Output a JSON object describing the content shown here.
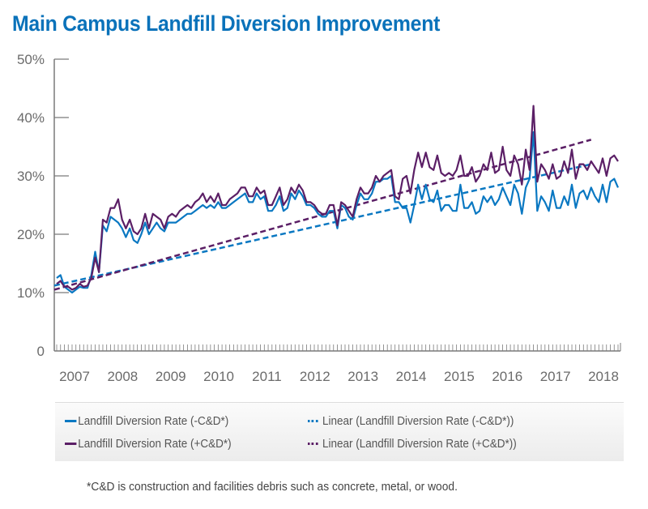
{
  "title": "Main Campus Landfill Diversion Improvement",
  "colors": {
    "blue": "#0a78c2",
    "purple": "#5b1f66",
    "axis": "#7a7a7a",
    "title": "#0a72ba"
  },
  "chart_data": {
    "type": "line",
    "title": "Main Campus Landfill Diversion Improvement",
    "xlabel": "",
    "ylabel": "",
    "ylim": [
      0,
      50
    ],
    "yticks": [
      0,
      10,
      20,
      30,
      40,
      50
    ],
    "ytick_labels": [
      "0",
      "10%",
      "20%",
      "30%",
      "40%",
      "50%"
    ],
    "x_unit": "month index",
    "year_labels": [
      "2007",
      "2008",
      "2009",
      "2010",
      "2011",
      "2012",
      "2013",
      "2014",
      "2015",
      "2016",
      "2017",
      "2018"
    ],
    "grid": false,
    "legend_position": "bottom",
    "series": [
      {
        "name": "Landfill Diversion Rate (-C&D*)",
        "style": "solid",
        "color": "#0a78c2",
        "values": [
          12.5,
          13,
          11,
          10.5,
          10,
          10.5,
          11,
          10.8,
          10.8,
          13,
          17,
          13.5,
          21.5,
          20.5,
          23,
          22.5,
          22,
          21,
          19.5,
          21,
          19,
          18.5,
          20,
          22,
          20,
          21,
          22,
          21,
          20.5,
          22,
          22,
          22,
          22.5,
          23,
          23.5,
          23.5,
          24,
          24.5,
          25,
          24.5,
          25,
          24.5,
          25.5,
          24.5,
          24.5,
          25,
          25.5,
          26,
          26.5,
          27,
          25.5,
          25.5,
          27,
          26,
          26.5,
          24,
          24,
          25,
          26.5,
          24,
          24.5,
          27,
          26,
          27.5,
          26.5,
          25,
          25,
          24.5,
          23.5,
          23,
          23,
          24,
          24,
          21,
          25,
          24.5,
          23,
          22.5,
          25,
          27,
          26,
          26,
          27,
          29,
          29,
          29.5,
          29.5,
          30,
          25.5,
          25.5,
          24.5,
          24.5,
          22,
          25,
          28.5,
          26,
          28.5,
          26,
          25.5,
          27.5,
          24,
          25,
          25,
          24,
          24,
          28.5,
          24.5,
          24.5,
          25.5,
          23.5,
          24,
          26.5,
          25.5,
          26.5,
          25,
          26,
          28,
          26.5,
          25,
          28.5,
          27,
          23.5,
          28,
          29.5,
          37.5,
          24,
          26.5,
          25.5,
          24,
          27.5,
          24.5,
          24.5,
          26.5,
          25,
          28.5,
          24.5,
          27,
          27.5,
          26,
          28,
          26.5,
          25.5,
          28.5,
          25.5,
          29,
          29.5,
          28
        ]
      },
      {
        "name": "Landfill Diversion Rate (+C&D*)",
        "style": "solid",
        "color": "#5b1f66",
        "values": [
          11.5,
          12,
          11,
          11,
          10.5,
          10.8,
          11.5,
          11,
          11.2,
          12.5,
          16,
          13.5,
          22.5,
          22,
          24.5,
          24.5,
          26,
          22.5,
          21,
          22.5,
          20.5,
          20,
          21,
          23.5,
          21,
          23.5,
          23,
          22.5,
          21,
          23,
          23.5,
          23,
          24,
          24.5,
          25,
          24.5,
          25.5,
          26,
          27,
          25.5,
          26.5,
          25.5,
          27,
          25,
          25,
          26,
          26.5,
          27,
          28,
          28,
          26.5,
          26.5,
          28,
          27,
          27.5,
          25,
          25,
          26.5,
          28,
          25,
          26,
          28,
          27,
          28.5,
          27.5,
          25.5,
          25.5,
          25,
          24,
          23.5,
          23.5,
          25,
          25,
          21.5,
          25.5,
          25,
          24,
          23,
          26,
          28,
          27,
          27,
          28,
          30,
          29,
          30,
          30.5,
          31,
          26.5,
          26,
          29.5,
          30,
          27,
          31,
          34,
          31.5,
          34,
          31.5,
          31,
          33.5,
          30.5,
          30,
          30.5,
          30,
          31,
          33.5,
          30,
          30,
          31.5,
          29,
          30,
          32,
          31,
          34,
          30.5,
          31,
          35,
          31,
          30,
          33.5,
          32,
          28.5,
          34.5,
          31,
          42,
          29,
          32,
          31,
          29.5,
          32,
          29.5,
          30,
          32.5,
          30.5,
          34.5,
          29.5,
          32,
          32,
          31,
          32.5,
          31.5,
          30.5,
          33,
          30,
          33,
          33.5,
          32.5
        ]
      },
      {
        "name": "Linear (Landfill Diversion Rate (-C&D*))",
        "style": "dashed",
        "color": "#0a78c2",
        "endpoints": [
          [
            0,
            11.2
          ],
          [
            139,
            32.0
          ]
        ]
      },
      {
        "name": "Linear (Landfill Diversion Rate (+C&D*))",
        "style": "dashed",
        "color": "#5b1f66",
        "endpoints": [
          [
            0,
            10.5
          ],
          [
            139,
            36.2
          ]
        ]
      }
    ]
  },
  "legend": [
    {
      "label": "Landfill Diversion Rate (-C&D*)",
      "style": "solid",
      "color": "#0a78c2"
    },
    {
      "label": "Linear (Landfill Diversion Rate (-C&D*))",
      "style": "dashed",
      "color": "#0a78c2"
    },
    {
      "label": "Landfill Diversion Rate (+C&D*)",
      "style": "solid",
      "color": "#5b1f66"
    },
    {
      "label": "Linear (Landfill Diversion Rate (+C&D*))",
      "style": "dashed",
      "color": "#5b1f66"
    }
  ],
  "footnote": "*C&D is construction and facilities debris such as concrete, metal, or wood."
}
